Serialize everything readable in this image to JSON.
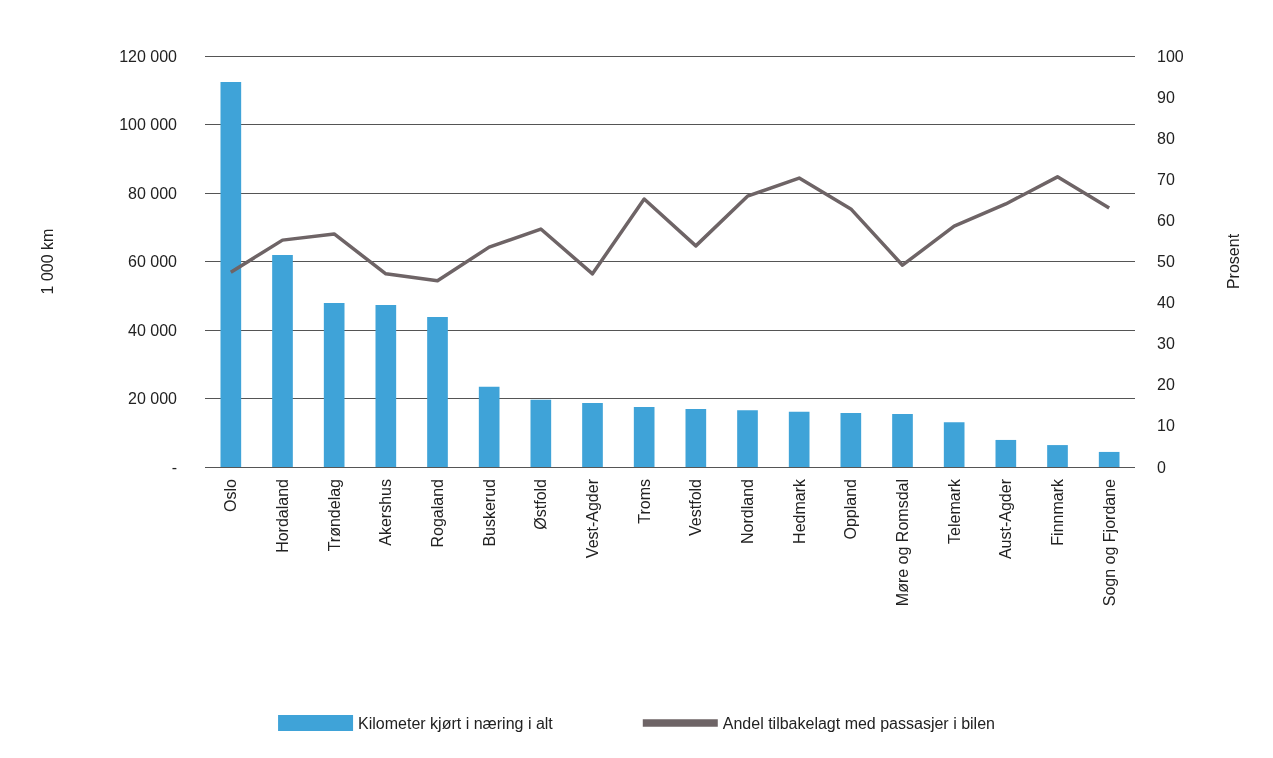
{
  "chart_data": {
    "type": "bar",
    "ylabel": "1 000 km",
    "y2label": "Prosent",
    "categories": [
      "Oslo",
      "Hordaland",
      "Trøndelag",
      "Akershus",
      "Rogaland",
      "Buskerud",
      "Østfold",
      "Vest-Agder",
      "Troms",
      "Vestfold",
      "Nordland",
      "Hedmark",
      "Oppland",
      "Møre og Romsdal",
      "Telemark",
      "Aust-Agder",
      "Finnmark",
      "Sogn og Fjordane"
    ],
    "series": [
      {
        "name": "Kilometer kjørt i næring i alt",
        "color": "#3fa3d8",
        "values": [
          112400,
          61900,
          47900,
          47300,
          43800,
          23400,
          19600,
          18700,
          17500,
          16900,
          16600,
          16100,
          15800,
          15500,
          13100,
          7900,
          6400,
          4400
        ]
      },
      {
        "name": "Andel tilbakelagt med passasjer i bilen",
        "type": "line",
        "axis": "y2",
        "color": "#6e6466",
        "values": [
          47.4,
          55.2,
          56.7,
          47.0,
          45.3,
          53.5,
          57.9,
          47.0,
          65.2,
          53.8,
          65.9,
          70.3,
          62.8,
          49.1,
          58.6,
          64.0,
          70.6,
          63.0
        ]
      }
    ],
    "ylim": [
      0,
      120000
    ],
    "yticks": [
      {
        "value": 0,
        "label": "-"
      },
      {
        "value": 20000,
        "label": "20 000"
      },
      {
        "value": 40000,
        "label": "40 000"
      },
      {
        "value": 60000,
        "label": "60 000"
      },
      {
        "value": 80000,
        "label": "80 000"
      },
      {
        "value": 100000,
        "label": "100 000"
      },
      {
        "value": 120000,
        "label": "120 000"
      }
    ],
    "y2lim": [
      0,
      100
    ],
    "y2ticks": [
      0,
      10,
      20,
      30,
      40,
      50,
      60,
      70,
      80,
      90,
      100
    ],
    "grid": "y",
    "legend": "bottom",
    "marker": "none"
  }
}
